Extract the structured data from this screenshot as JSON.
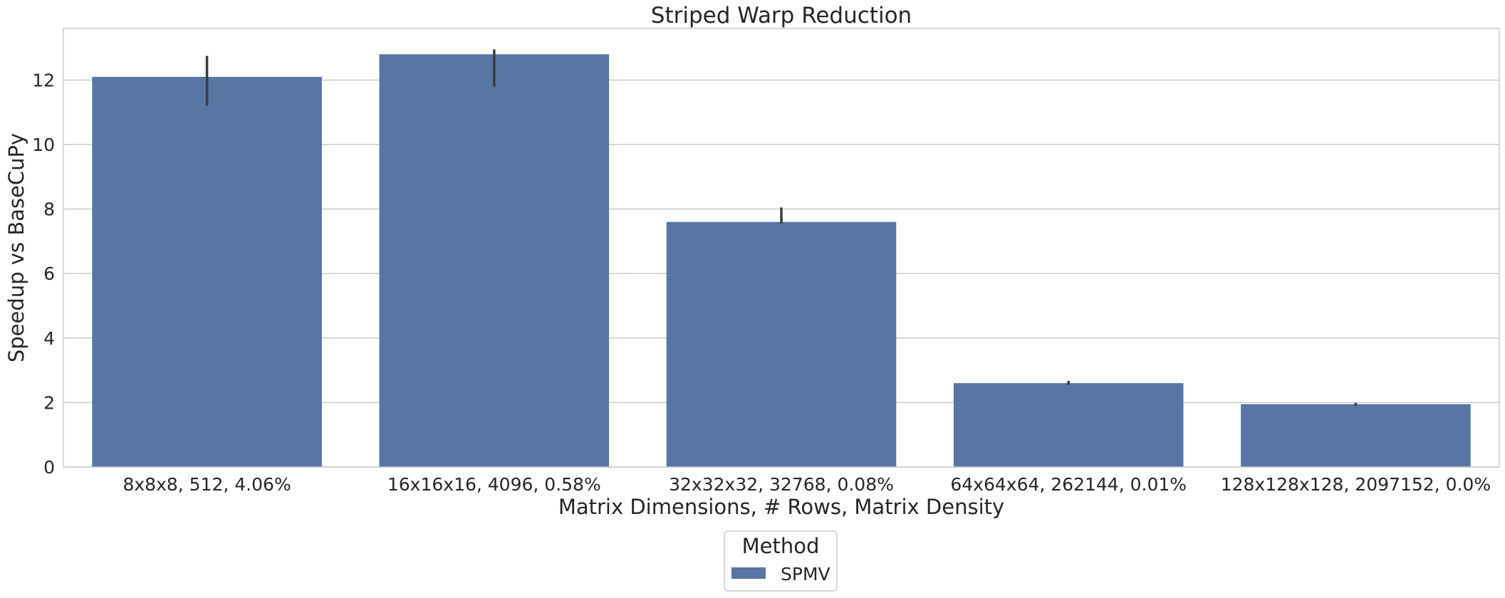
{
  "chart_data": {
    "type": "bar",
    "title": "Striped Warp Reduction",
    "xlabel": "Matrix Dimensions, # Rows, Matrix Density",
    "ylabel": "Speedup vs BaseCuPy",
    "categories": [
      "8x8x8, 512, 4.06%",
      "16x16x16, 4096, 0.58%",
      "32x32x32, 32768, 0.08%",
      "64x64x64, 262144, 0.01%",
      "128x128x128, 2097152, 0.0%"
    ],
    "series": [
      {
        "name": "SPMV",
        "color": "#5875a4",
        "values": [
          12.1,
          12.8,
          7.6,
          2.6,
          1.95
        ],
        "error_low": [
          11.2,
          11.8,
          7.55,
          2.55,
          1.9
        ],
        "error_high": [
          12.75,
          12.95,
          8.05,
          2.67,
          1.99
        ]
      }
    ],
    "yticks": [
      0,
      2,
      4,
      6,
      8,
      10,
      12
    ],
    "ylim": [
      0,
      13.6
    ],
    "grid": "horizontal",
    "legend": {
      "title": "Method",
      "placement": "bottom-center"
    }
  }
}
